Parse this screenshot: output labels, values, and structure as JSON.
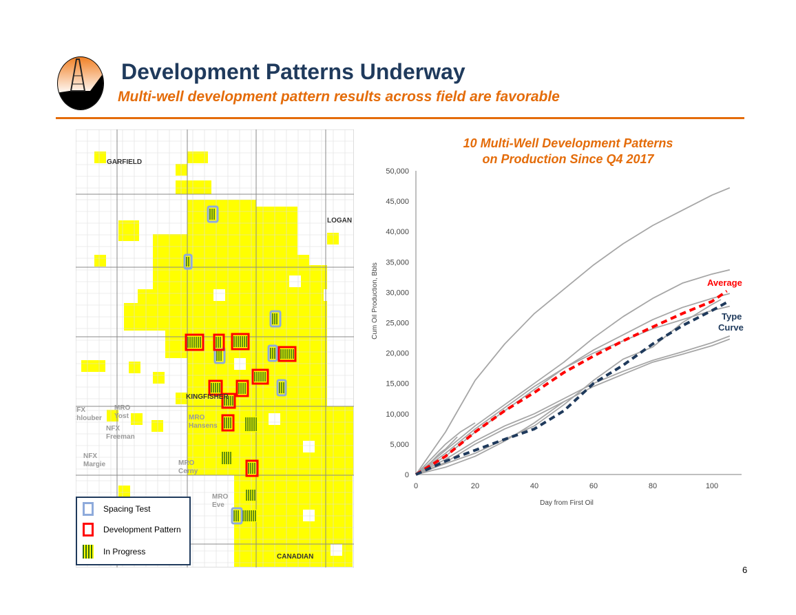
{
  "header": {
    "title": "Development Patterns Underway",
    "subtitle": "Multi-well development pattern results across field are favorable"
  },
  "map": {
    "counties": [
      "GARFIELD",
      "LOGAN",
      "KINGFISHER",
      "CANADIAN"
    ],
    "operators": [
      [
        "NFX",
        "Chlouber"
      ],
      [
        "MRO",
        "Yost"
      ],
      [
        "NFX",
        "Freeman"
      ],
      [
        "MRO",
        "Hansens"
      ],
      [
        "NFX",
        "Margie"
      ],
      [
        "MRO",
        "Cerny"
      ],
      [
        "MRO",
        "Eve"
      ]
    ],
    "legend": [
      {
        "label": "Spacing Test",
        "color": "#8eaadb"
      },
      {
        "label": "Development Pattern",
        "color": "#ff0000"
      },
      {
        "label": "In Progress",
        "color": "#2e7d1f"
      }
    ],
    "colors": {
      "acreage": "#ffff00",
      "spacing": "#8eaadb",
      "pattern": "#ff0000",
      "wells": "#2e6b12"
    }
  },
  "chart_data": {
    "type": "line",
    "title": "10 Multi-Well Development Patterns on Production Since Q4 2017",
    "title_lines": [
      "10 Multi-Well Development Patterns",
      "on Production Since Q4 2017"
    ],
    "xlabel": "Day from First Oil",
    "ylabel": "Cum Oil Production, Bbls",
    "xlim": [
      0,
      110
    ],
    "ylim": [
      0,
      50000
    ],
    "xticks": [
      "0",
      "20",
      "40",
      "60",
      "80",
      "100"
    ],
    "yticks": [
      "0",
      "5,000",
      "10,000",
      "15,000",
      "20,000",
      "25,000",
      "30,000",
      "35,000",
      "40,000",
      "45,000",
      "50,000"
    ],
    "grid": false,
    "series": [
      {
        "name": "Well pattern 1",
        "color": "#a6a6a6",
        "x": [
          0,
          10,
          20,
          30,
          40,
          50,
          60,
          70,
          80,
          90,
          100,
          106
        ],
        "y": [
          0,
          7000,
          15500,
          21500,
          26500,
          30500,
          34500,
          38000,
          41000,
          43500,
          46000,
          47200
        ]
      },
      {
        "name": "Well pattern 2",
        "color": "#a6a6a6",
        "x": [
          0,
          10,
          20,
          30,
          40,
          50,
          60,
          70,
          80,
          90,
          100,
          106
        ],
        "y": [
          0,
          4000,
          8000,
          11500,
          15000,
          18500,
          22500,
          26000,
          29000,
          31500,
          33000,
          33700
        ]
      },
      {
        "name": "Well pattern 3",
        "color": "#a6a6a6",
        "x": [
          0,
          10,
          20,
          30,
          40,
          50,
          60,
          70,
          80,
          90,
          100,
          106
        ],
        "y": [
          0,
          3500,
          7500,
          11000,
          14500,
          17500,
          20500,
          23000,
          25500,
          27500,
          29000,
          29800
        ]
      },
      {
        "name": "Well pattern 4",
        "color": "#a6a6a6",
        "x": [
          0,
          10,
          20,
          30,
          40,
          50,
          60,
          70,
          80,
          90,
          100,
          106
        ],
        "y": [
          0,
          3000,
          7000,
          10500,
          14000,
          17500,
          20000,
          22000,
          24000,
          25500,
          27000,
          27700
        ]
      },
      {
        "name": "Well pattern 5",
        "color": "#a6a6a6",
        "x": [
          0,
          10,
          20,
          30,
          40,
          50,
          60,
          70,
          80,
          90,
          100,
          103
        ],
        "y": [
          0,
          1800,
          3500,
          5800,
          8000,
          11500,
          15500,
          19000,
          21000,
          25000,
          28000,
          28800
        ]
      },
      {
        "name": "Well pattern 6",
        "color": "#a6a6a6",
        "x": [
          0,
          10,
          20,
          30,
          40,
          50,
          60,
          70,
          80,
          90,
          100,
          106
        ],
        "y": [
          0,
          2500,
          5500,
          8000,
          10000,
          12500,
          15000,
          17000,
          18800,
          20200,
          21700,
          22800
        ]
      },
      {
        "name": "Well pattern 7",
        "color": "#a6a6a6",
        "x": [
          0,
          10,
          20,
          30,
          40,
          50,
          60,
          70,
          80,
          90,
          100,
          106
        ],
        "y": [
          0,
          2000,
          5000,
          7500,
          9500,
          12000,
          14500,
          16500,
          18500,
          19800,
          21200,
          22300
        ]
      },
      {
        "name": "Well pattern 8",
        "color": "#a6a6a6",
        "x": [
          0,
          10,
          20,
          30,
          40,
          50
        ],
        "y": [
          0,
          1200,
          3000,
          5500,
          8500,
          12000
        ]
      },
      {
        "name": "Well pattern 9",
        "color": "#a6a6a6",
        "x": [
          0,
          4,
          8,
          10,
          12,
          14
        ],
        "y": [
          0,
          1500,
          3500,
          4200,
          5200,
          6200
        ]
      },
      {
        "name": "Well pattern 10",
        "color": "#a6a6a6",
        "x": [
          0,
          5,
          10,
          15,
          20
        ],
        "y": [
          0,
          2500,
          5000,
          7000,
          8500
        ]
      },
      {
        "name": "Average",
        "color": "#ff0000",
        "dashed": true,
        "label": "Average",
        "x": [
          0,
          10,
          20,
          30,
          40,
          50,
          60,
          70,
          80,
          90,
          100,
          105
        ],
        "y": [
          0,
          3000,
          7000,
          10500,
          13500,
          16800,
          19500,
          22000,
          24300,
          26500,
          28500,
          30200
        ]
      },
      {
        "name": "Type Curve",
        "color": "#1f3a5c",
        "dashed": true,
        "label_lines": [
          "Type",
          "Curve"
        ],
        "x": [
          0,
          10,
          20,
          30,
          40,
          50,
          60,
          70,
          80,
          90,
          100,
          106
        ],
        "y": [
          0,
          2200,
          4000,
          5800,
          7500,
          10500,
          15000,
          18000,
          21500,
          24500,
          27000,
          28600
        ]
      }
    ]
  },
  "footer": {
    "page_number": "6"
  }
}
